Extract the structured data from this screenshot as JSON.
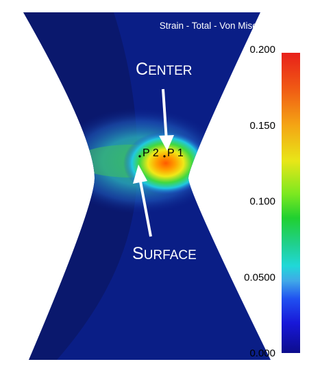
{
  "title": "Strain - Total - Von Mises (mm/mm)",
  "labels": {
    "center": {
      "initial": "C",
      "rest": "ENTER"
    },
    "surface": {
      "initial": "S",
      "rest": "URFACE"
    },
    "point_2": "P 2",
    "point_1": "P 1"
  },
  "legend": {
    "ticks": [
      "0.200",
      "0.150",
      "0.100",
      "0.0500",
      "0.000"
    ],
    "range": [
      0.0,
      0.2
    ]
  },
  "colors": {
    "background_field": "#0a1e86",
    "shadow_field": "#0a1868",
    "hot_spot": "#ff5a00",
    "arrow": "#ffffff"
  }
}
